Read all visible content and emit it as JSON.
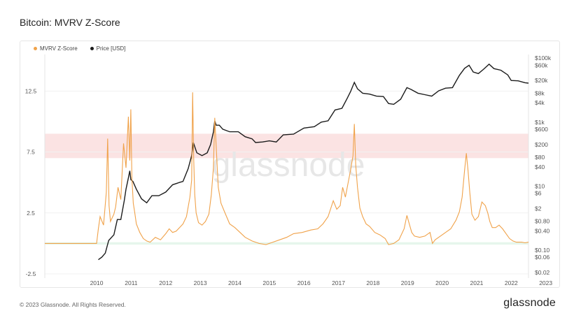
{
  "title": "Bitcoin: MVRV Z-Score",
  "legend": {
    "z_label": "MVRV Z-Score",
    "price_label": "Price [USD]"
  },
  "footer": "© 2023 Glassnode. All Rights Reserved.",
  "brand": "glassnode",
  "watermark": "glassnode",
  "colors": {
    "zscore": "#f0a24a",
    "price": "#1c1c1c",
    "red_band": "#fbe3e3",
    "green_band": "#e6f6ec"
  },
  "chart_data": {
    "type": "line",
    "title": "Bitcoin: MVRV Z-Score",
    "xlabel": "",
    "x_ticks": [
      "2010",
      "2011",
      "2012",
      "2013",
      "2014",
      "2015",
      "2016",
      "2017",
      "2018",
      "2019",
      "2020",
      "2021",
      "2022",
      "2023"
    ],
    "x_range": [
      2009.0,
      2023.0
    ],
    "left_axis": {
      "ticks": [
        "12.5",
        "7.5",
        "2.5",
        "-2.5"
      ],
      "tick_values": [
        12.5,
        7.5,
        2.5,
        -2.5
      ],
      "range": [
        -2.5,
        15.5
      ]
    },
    "right_axis": {
      "scale": "log",
      "ticks": [
        "$100k",
        "$60k",
        "$20k",
        "$8k",
        "$4k",
        "$1k",
        "$600",
        "$200",
        "$80",
        "$40",
        "$10",
        "$6",
        "$2",
        "$0.80",
        "$0.40",
        "$0.10",
        "$0.06",
        "$0.02"
      ],
      "tick_values": [
        100000,
        60000,
        20000,
        8000,
        4000,
        1000,
        600,
        200,
        80,
        40,
        10,
        6,
        2,
        0.8,
        0.4,
        0.1,
        0.06,
        0.02
      ],
      "range": [
        0.018,
        130000
      ]
    },
    "bands": [
      {
        "name": "red",
        "from": 7.0,
        "to": 9.0
      },
      {
        "name": "green",
        "from": -0.1,
        "to": 0.1
      }
    ],
    "series": [
      {
        "name": "MVRV Z-Score",
        "axis": "left",
        "x": [
          2009.0,
          2010.5,
          2010.55,
          2010.6,
          2010.7,
          2010.78,
          2010.82,
          2010.86,
          2010.9,
          2011.0,
          2011.05,
          2011.12,
          2011.2,
          2011.28,
          2011.35,
          2011.42,
          2011.46,
          2011.49,
          2011.52,
          2011.56,
          2011.6,
          2011.65,
          2011.75,
          2011.85,
          2011.95,
          2012.05,
          2012.2,
          2012.35,
          2012.5,
          2012.6,
          2012.7,
          2012.8,
          2012.9,
          2013.0,
          2013.1,
          2013.2,
          2013.25,
          2013.28,
          2013.31,
          2013.34,
          2013.38,
          2013.45,
          2013.55,
          2013.65,
          2013.75,
          2013.82,
          2013.88,
          2013.92,
          2013.96,
          2014.02,
          2014.1,
          2014.2,
          2014.35,
          2014.5,
          2014.65,
          2014.8,
          2015.0,
          2015.2,
          2015.4,
          2015.6,
          2015.8,
          2016.0,
          2016.2,
          2016.45,
          2016.7,
          2016.9,
          2017.05,
          2017.2,
          2017.35,
          2017.45,
          2017.55,
          2017.62,
          2017.7,
          2017.78,
          2017.85,
          2017.92,
          2017.96,
          2018.0,
          2018.05,
          2018.12,
          2018.2,
          2018.3,
          2018.4,
          2018.55,
          2018.7,
          2018.85,
          2018.95,
          2019.1,
          2019.25,
          2019.4,
          2019.48,
          2019.55,
          2019.62,
          2019.7,
          2019.85,
          2020.0,
          2020.15,
          2020.22,
          2020.3,
          2020.45,
          2020.6,
          2020.75,
          2020.9,
          2021.0,
          2021.08,
          2021.15,
          2021.2,
          2021.25,
          2021.3,
          2021.36,
          2021.45,
          2021.55,
          2021.65,
          2021.75,
          2021.82,
          2021.88,
          2021.95,
          2022.05,
          2022.15,
          2022.25,
          2022.35,
          2022.45,
          2022.55,
          2022.65,
          2022.8,
          2022.9,
          2023.0
        ],
        "y": [
          0.0,
          0.0,
          1.2,
          2.2,
          1.5,
          4.2,
          8.6,
          3.1,
          1.8,
          2.4,
          3.0,
          4.6,
          3.6,
          8.2,
          6.2,
          10.4,
          6.8,
          11.0,
          5.4,
          3.3,
          2.6,
          1.6,
          0.9,
          0.4,
          0.2,
          0.1,
          0.5,
          0.3,
          0.8,
          1.2,
          0.9,
          1.0,
          1.3,
          1.6,
          2.2,
          3.8,
          5.2,
          12.4,
          7.0,
          4.0,
          2.5,
          1.7,
          1.5,
          1.8,
          2.4,
          4.0,
          6.2,
          10.3,
          8.0,
          4.6,
          3.3,
          2.6,
          1.6,
          1.3,
          0.9,
          0.5,
          0.2,
          0.0,
          -0.1,
          0.1,
          0.3,
          0.5,
          0.8,
          0.9,
          1.1,
          1.2,
          1.6,
          2.2,
          3.5,
          2.8,
          3.1,
          4.6,
          3.8,
          5.0,
          6.0,
          7.2,
          9.8,
          6.4,
          4.6,
          2.9,
          2.2,
          1.6,
          1.4,
          0.9,
          0.7,
          0.4,
          -0.1,
          0.0,
          0.3,
          1.2,
          2.3,
          1.6,
          0.9,
          0.6,
          0.5,
          0.6,
          0.9,
          0.0,
          0.3,
          0.6,
          0.9,
          1.2,
          1.9,
          2.6,
          3.8,
          6.0,
          7.4,
          6.0,
          4.2,
          2.4,
          1.9,
          2.2,
          3.4,
          3.1,
          2.5,
          1.8,
          1.3,
          1.3,
          1.5,
          1.2,
          0.8,
          0.4,
          0.2,
          0.1,
          0.1,
          0.05,
          0.1
        ]
      },
      {
        "name": "Price [USD]",
        "axis": "right",
        "x": [
          2010.55,
          2010.65,
          2010.75,
          2010.85,
          2011.0,
          2011.1,
          2011.2,
          2011.3,
          2011.35,
          2011.42,
          2011.46,
          2011.49,
          2011.55,
          2011.65,
          2011.8,
          2011.95,
          2012.1,
          2012.3,
          2012.5,
          2012.7,
          2012.9,
          2013.0,
          2013.15,
          2013.25,
          2013.3,
          2013.4,
          2013.55,
          2013.7,
          2013.8,
          2013.88,
          2013.92,
          2013.96,
          2014.05,
          2014.15,
          2014.35,
          2014.6,
          2014.8,
          2015.0,
          2015.1,
          2015.3,
          2015.5,
          2015.7,
          2015.9,
          2016.2,
          2016.5,
          2016.8,
          2017.0,
          2017.2,
          2017.4,
          2017.6,
          2017.75,
          2017.85,
          2017.96,
          2018.05,
          2018.2,
          2018.4,
          2018.6,
          2018.8,
          2018.95,
          2019.1,
          2019.3,
          2019.48,
          2019.6,
          2019.8,
          2020.0,
          2020.2,
          2020.4,
          2020.6,
          2020.8,
          2021.0,
          2021.15,
          2021.28,
          2021.4,
          2021.55,
          2021.7,
          2021.86,
          2022.0,
          2022.2,
          2022.4,
          2022.5,
          2022.7,
          2022.9,
          2023.0
        ],
        "y": [
          0.05,
          0.06,
          0.08,
          0.2,
          0.3,
          0.9,
          0.9,
          3.5,
          8.0,
          18.0,
          30.0,
          16.0,
          14.0,
          8.0,
          4.0,
          3.0,
          5.0,
          5.0,
          6.5,
          11.0,
          13.0,
          14.0,
          35.0,
          90.0,
          230.0,
          110.0,
          90.0,
          110.0,
          200.0,
          500.0,
          1100.0,
          800.0,
          800.0,
          600.0,
          500.0,
          500.0,
          350.0,
          300.0,
          230.0,
          240.0,
          260.0,
          240.0,
          400.0,
          420.0,
          650.0,
          720.0,
          1000.0,
          1100.0,
          2400.0,
          2700.0,
          5500.0,
          9000.0,
          17500.0,
          11000.0,
          8000.0,
          7500.0,
          6500.0,
          6300.0,
          3800.0,
          3600.0,
          5200.0,
          12000.0,
          10500.0,
          8000.0,
          7200.0,
          6500.0,
          9500.0,
          11500.0,
          12000.0,
          29000.0,
          48000.0,
          60000.0,
          37000.0,
          33000.0,
          45000.0,
          65000.0,
          47000.0,
          42000.0,
          30000.0,
          20000.0,
          19500.0,
          17000.0,
          16500.0
        ]
      }
    ]
  }
}
